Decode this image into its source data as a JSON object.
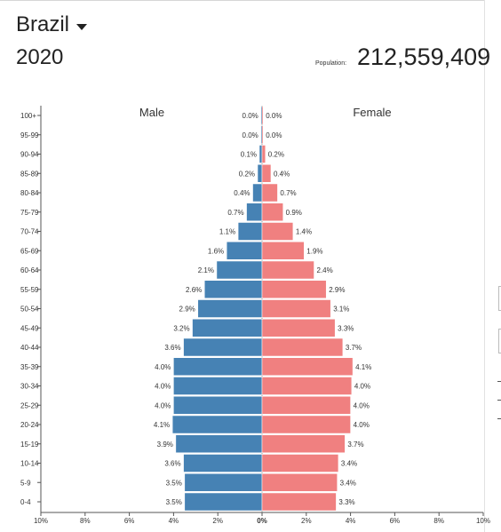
{
  "header": {
    "country": "Brazil",
    "year": "2020",
    "population_label": "Population:",
    "population_value": "212,559,409"
  },
  "chart_data": {
    "type": "bar",
    "orientation": "horizontal-pyramid",
    "series_labels": {
      "male": "Male",
      "female": "Female"
    },
    "colors": {
      "male": "#4682b4",
      "female": "#f08080"
    },
    "categories": [
      "100+",
      "95-99",
      "90-94",
      "85-89",
      "80-84",
      "75-79",
      "70-74",
      "65-69",
      "60-64",
      "55-59",
      "50-54",
      "45-49",
      "40-44",
      "35-39",
      "30-34",
      "25-29",
      "20-24",
      "15-19",
      "10-14",
      "5-9",
      "0-4"
    ],
    "series": [
      {
        "name": "Male",
        "values": [
          0.0,
          0.0,
          0.1,
          0.2,
          0.4,
          0.7,
          1.1,
          1.6,
          2.1,
          2.6,
          2.9,
          3.2,
          3.6,
          4.0,
          4.0,
          4.0,
          4.1,
          3.9,
          3.6,
          3.5,
          3.5
        ]
      },
      {
        "name": "Female",
        "values": [
          0.0,
          0.0,
          0.2,
          0.4,
          0.7,
          0.9,
          1.4,
          1.9,
          2.4,
          2.9,
          3.1,
          3.3,
          3.7,
          4.1,
          4.0,
          4.0,
          4.0,
          3.7,
          3.4,
          3.4,
          3.3
        ]
      }
    ],
    "bar_length_values": {
      "male": [
        0.05,
        0.05,
        0.12,
        0.2,
        0.42,
        0.7,
        1.08,
        1.6,
        2.05,
        2.6,
        2.9,
        3.15,
        3.55,
        4.0,
        4.0,
        4.0,
        4.05,
        3.9,
        3.55,
        3.5,
        3.5
      ],
      "female": [
        0.05,
        0.05,
        0.15,
        0.4,
        0.7,
        0.95,
        1.4,
        1.9,
        2.35,
        2.9,
        3.1,
        3.3,
        3.65,
        4.1,
        4.05,
        4.0,
        4.0,
        3.75,
        3.45,
        3.4,
        3.35
      ]
    },
    "value_labels": {
      "male": [
        "0.0%",
        "0.0%",
        "0.1%",
        "0.2%",
        "0.4%",
        "0.7%",
        "1.1%",
        "1.6%",
        "2.1%",
        "2.6%",
        "2.9%",
        "3.2%",
        "3.6%",
        "4.0%",
        "4.0%",
        "4.0%",
        "4.1%",
        "3.9%",
        "3.6%",
        "3.5%",
        "3.5%"
      ],
      "female": [
        "0.0%",
        "0.0%",
        "0.2%",
        "0.4%",
        "0.7%",
        "0.9%",
        "1.4%",
        "1.9%",
        "2.4%",
        "2.9%",
        "3.1%",
        "3.3%",
        "3.7%",
        "4.1%",
        "4.0%",
        "4.0%",
        "4.0%",
        "3.7%",
        "3.4%",
        "3.4%",
        "3.3%"
      ]
    },
    "x_ticks": [
      {
        "value": -10,
        "label": "10%"
      },
      {
        "value": -8,
        "label": "8%"
      },
      {
        "value": -6,
        "label": "6%"
      },
      {
        "value": -4,
        "label": "4%"
      },
      {
        "value": -2,
        "label": "2%"
      },
      {
        "value": 0,
        "label": "0%"
      },
      {
        "value": 2,
        "label": "2%"
      },
      {
        "value": 4,
        "label": "4%"
      },
      {
        "value": 6,
        "label": "6%"
      },
      {
        "value": 8,
        "label": "8%"
      },
      {
        "value": 10,
        "label": "10%"
      }
    ],
    "xlim": [
      -10,
      10
    ],
    "grid": false,
    "unit": "percent of total population"
  }
}
